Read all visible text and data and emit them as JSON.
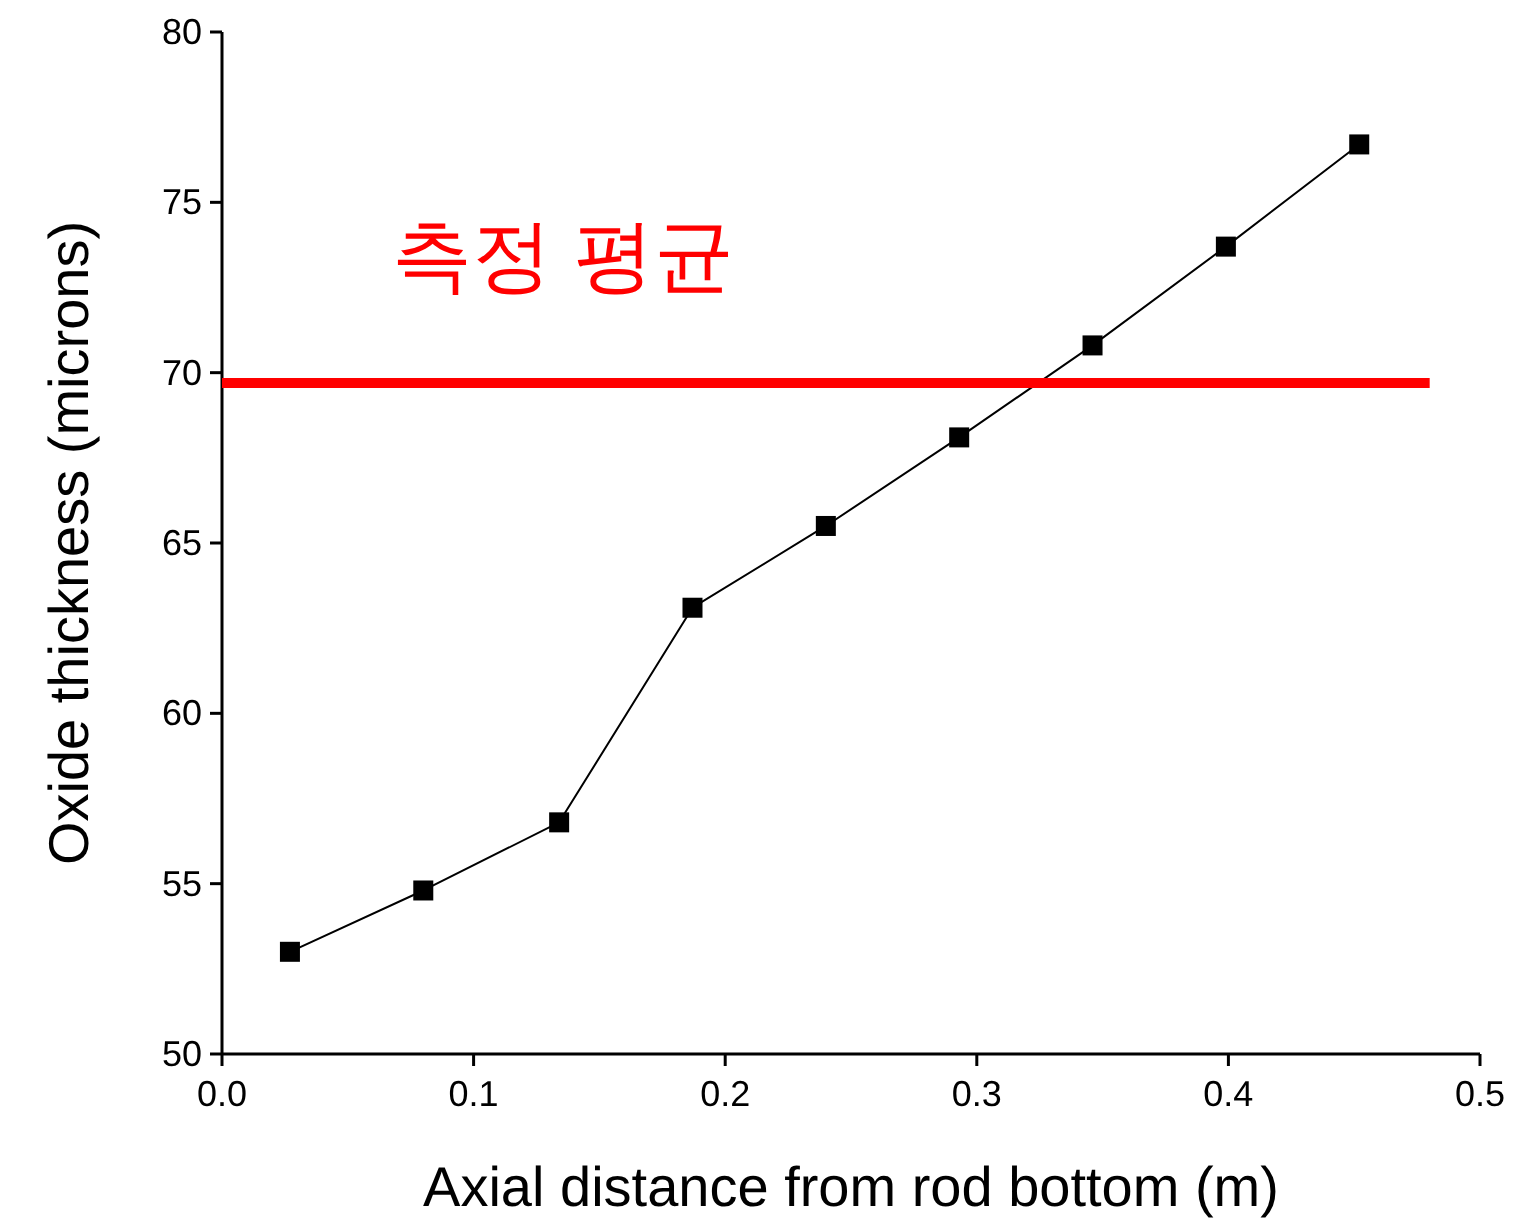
{
  "chart_data": {
    "type": "line",
    "xlabel": "Axial distance from rod bottom (m)",
    "ylabel": "Oxide thickness (microns)",
    "xlim": [
      0,
      0.5
    ],
    "xticks": [
      {
        "value": 0,
        "label": "0.0"
      },
      0.1,
      0.2,
      0.3,
      0.4,
      0.5
    ],
    "ylim": [
      50,
      80
    ],
    "yticks": [
      50,
      55,
      60,
      65,
      70,
      75,
      80
    ],
    "grid": false,
    "series": [
      {
        "color": "#000000",
        "marker": "square",
        "x": [
          0.027,
          0.08,
          0.134,
          0.187,
          0.24,
          0.293,
          0.346,
          0.399,
          0.452
        ],
        "values": [
          53.0,
          54.8,
          56.8,
          63.1,
          65.5,
          68.1,
          70.8,
          73.7,
          76.7
        ]
      },
      {
        "name": "측정 평균",
        "color": "#ff0000",
        "marker": "none",
        "x": [
          0,
          0.48
        ],
        "values": [
          69.7,
          69.7
        ]
      }
    ]
  }
}
